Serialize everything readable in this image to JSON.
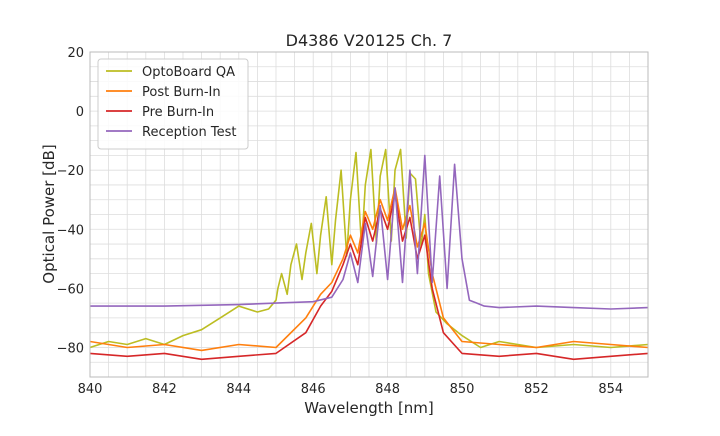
{
  "chart_data": {
    "type": "line",
    "title": "D4386 V20125 Ch. 7",
    "xlabel": "Wavelength [nm]",
    "ylabel": "Optical Power [dB]",
    "xlim": [
      840,
      855
    ],
    "ylim": [
      -90,
      20
    ],
    "xticks": [
      840,
      842,
      844,
      846,
      848,
      850,
      852,
      854
    ],
    "yticks": [
      -80,
      -60,
      -40,
      -20,
      0,
      20
    ],
    "grid": true,
    "legend_position": "top-left",
    "series": [
      {
        "name": "OptoBoard QA",
        "color": "#bcbd22",
        "x": [
          840,
          840.5,
          841,
          841.5,
          842,
          842.5,
          843,
          843.5,
          844,
          844.5,
          844.8,
          845,
          845.05,
          845.15,
          845.3,
          845.4,
          845.55,
          845.7,
          845.8,
          845.95,
          846.1,
          846.2,
          846.35,
          846.5,
          846.6,
          846.75,
          846.9,
          847.0,
          847.15,
          847.3,
          847.4,
          847.55,
          847.7,
          847.8,
          847.95,
          848.1,
          848.2,
          848.35,
          848.5,
          848.6,
          848.75,
          848.9,
          849.0,
          849.1,
          849.3,
          849.6,
          850,
          850.5,
          851,
          852,
          853,
          854,
          855
        ],
        "y": [
          -80,
          -78,
          -79,
          -77,
          -79,
          -76,
          -74,
          -70,
          -66,
          -68,
          -67,
          -64,
          -60,
          -55,
          -62,
          -52,
          -45,
          -57,
          -48,
          -38,
          -55,
          -42,
          -29,
          -52,
          -37,
          -20,
          -49,
          -30,
          -14,
          -46,
          -25,
          -13,
          -45,
          -22,
          -13,
          -44,
          -20,
          -13,
          -43,
          -21,
          -23,
          -46,
          -35,
          -55,
          -68,
          -72,
          -76,
          -80,
          -78,
          -80,
          -79,
          -80,
          -79
        ]
      },
      {
        "name": "Post Burn-In",
        "color": "#ff7f0e",
        "x": [
          840,
          841,
          842,
          843,
          844,
          845,
          845.8,
          846.2,
          846.5,
          846.8,
          847.0,
          847.2,
          847.4,
          847.6,
          847.8,
          848.0,
          848.2,
          848.4,
          848.6,
          848.8,
          849.0,
          849.2,
          849.5,
          850,
          851,
          852,
          853,
          854,
          855
        ],
        "y": [
          -78,
          -80,
          -79,
          -81,
          -79,
          -80,
          -70,
          -62,
          -58,
          -50,
          -42,
          -48,
          -34,
          -40,
          -30,
          -37,
          -26,
          -40,
          -32,
          -46,
          -38,
          -55,
          -70,
          -78,
          -79,
          -80,
          -78,
          -79,
          -80
        ]
      },
      {
        "name": "Pre Burn-In",
        "color": "#d62728",
        "x": [
          840,
          841,
          842,
          843,
          844,
          845,
          845.8,
          846.2,
          846.5,
          846.8,
          847.0,
          847.2,
          847.4,
          847.6,
          847.8,
          848.0,
          848.2,
          848.4,
          848.6,
          848.8,
          849.0,
          849.2,
          849.5,
          850,
          851,
          852,
          853,
          854,
          855
        ],
        "y": [
          -82,
          -83,
          -82,
          -84,
          -83,
          -82,
          -75,
          -66,
          -61,
          -52,
          -45,
          -52,
          -36,
          -44,
          -33,
          -40,
          -28,
          -44,
          -36,
          -50,
          -42,
          -60,
          -75,
          -82,
          -83,
          -82,
          -84,
          -83,
          -82
        ]
      },
      {
        "name": "Reception Test",
        "color": "#9467bd",
        "x": [
          840,
          842,
          844,
          845,
          846,
          846.5,
          846.8,
          847.0,
          847.2,
          847.4,
          847.6,
          847.8,
          848.0,
          848.2,
          848.4,
          848.6,
          848.8,
          849.0,
          849.2,
          849.4,
          849.6,
          849.8,
          850.0,
          850.2,
          850.4,
          850.6,
          851,
          852,
          853,
          854,
          855
        ],
        "y": [
          -66,
          -66,
          -65.5,
          -65,
          -64.5,
          -63,
          -57,
          -48,
          -58,
          -38,
          -56,
          -32,
          -57,
          -26,
          -58,
          -20,
          -55,
          -15,
          -58,
          -22,
          -60,
          -18,
          -50,
          -64,
          -65,
          -66,
          -66.5,
          -66,
          -66.5,
          -67,
          -66.5
        ]
      }
    ]
  }
}
